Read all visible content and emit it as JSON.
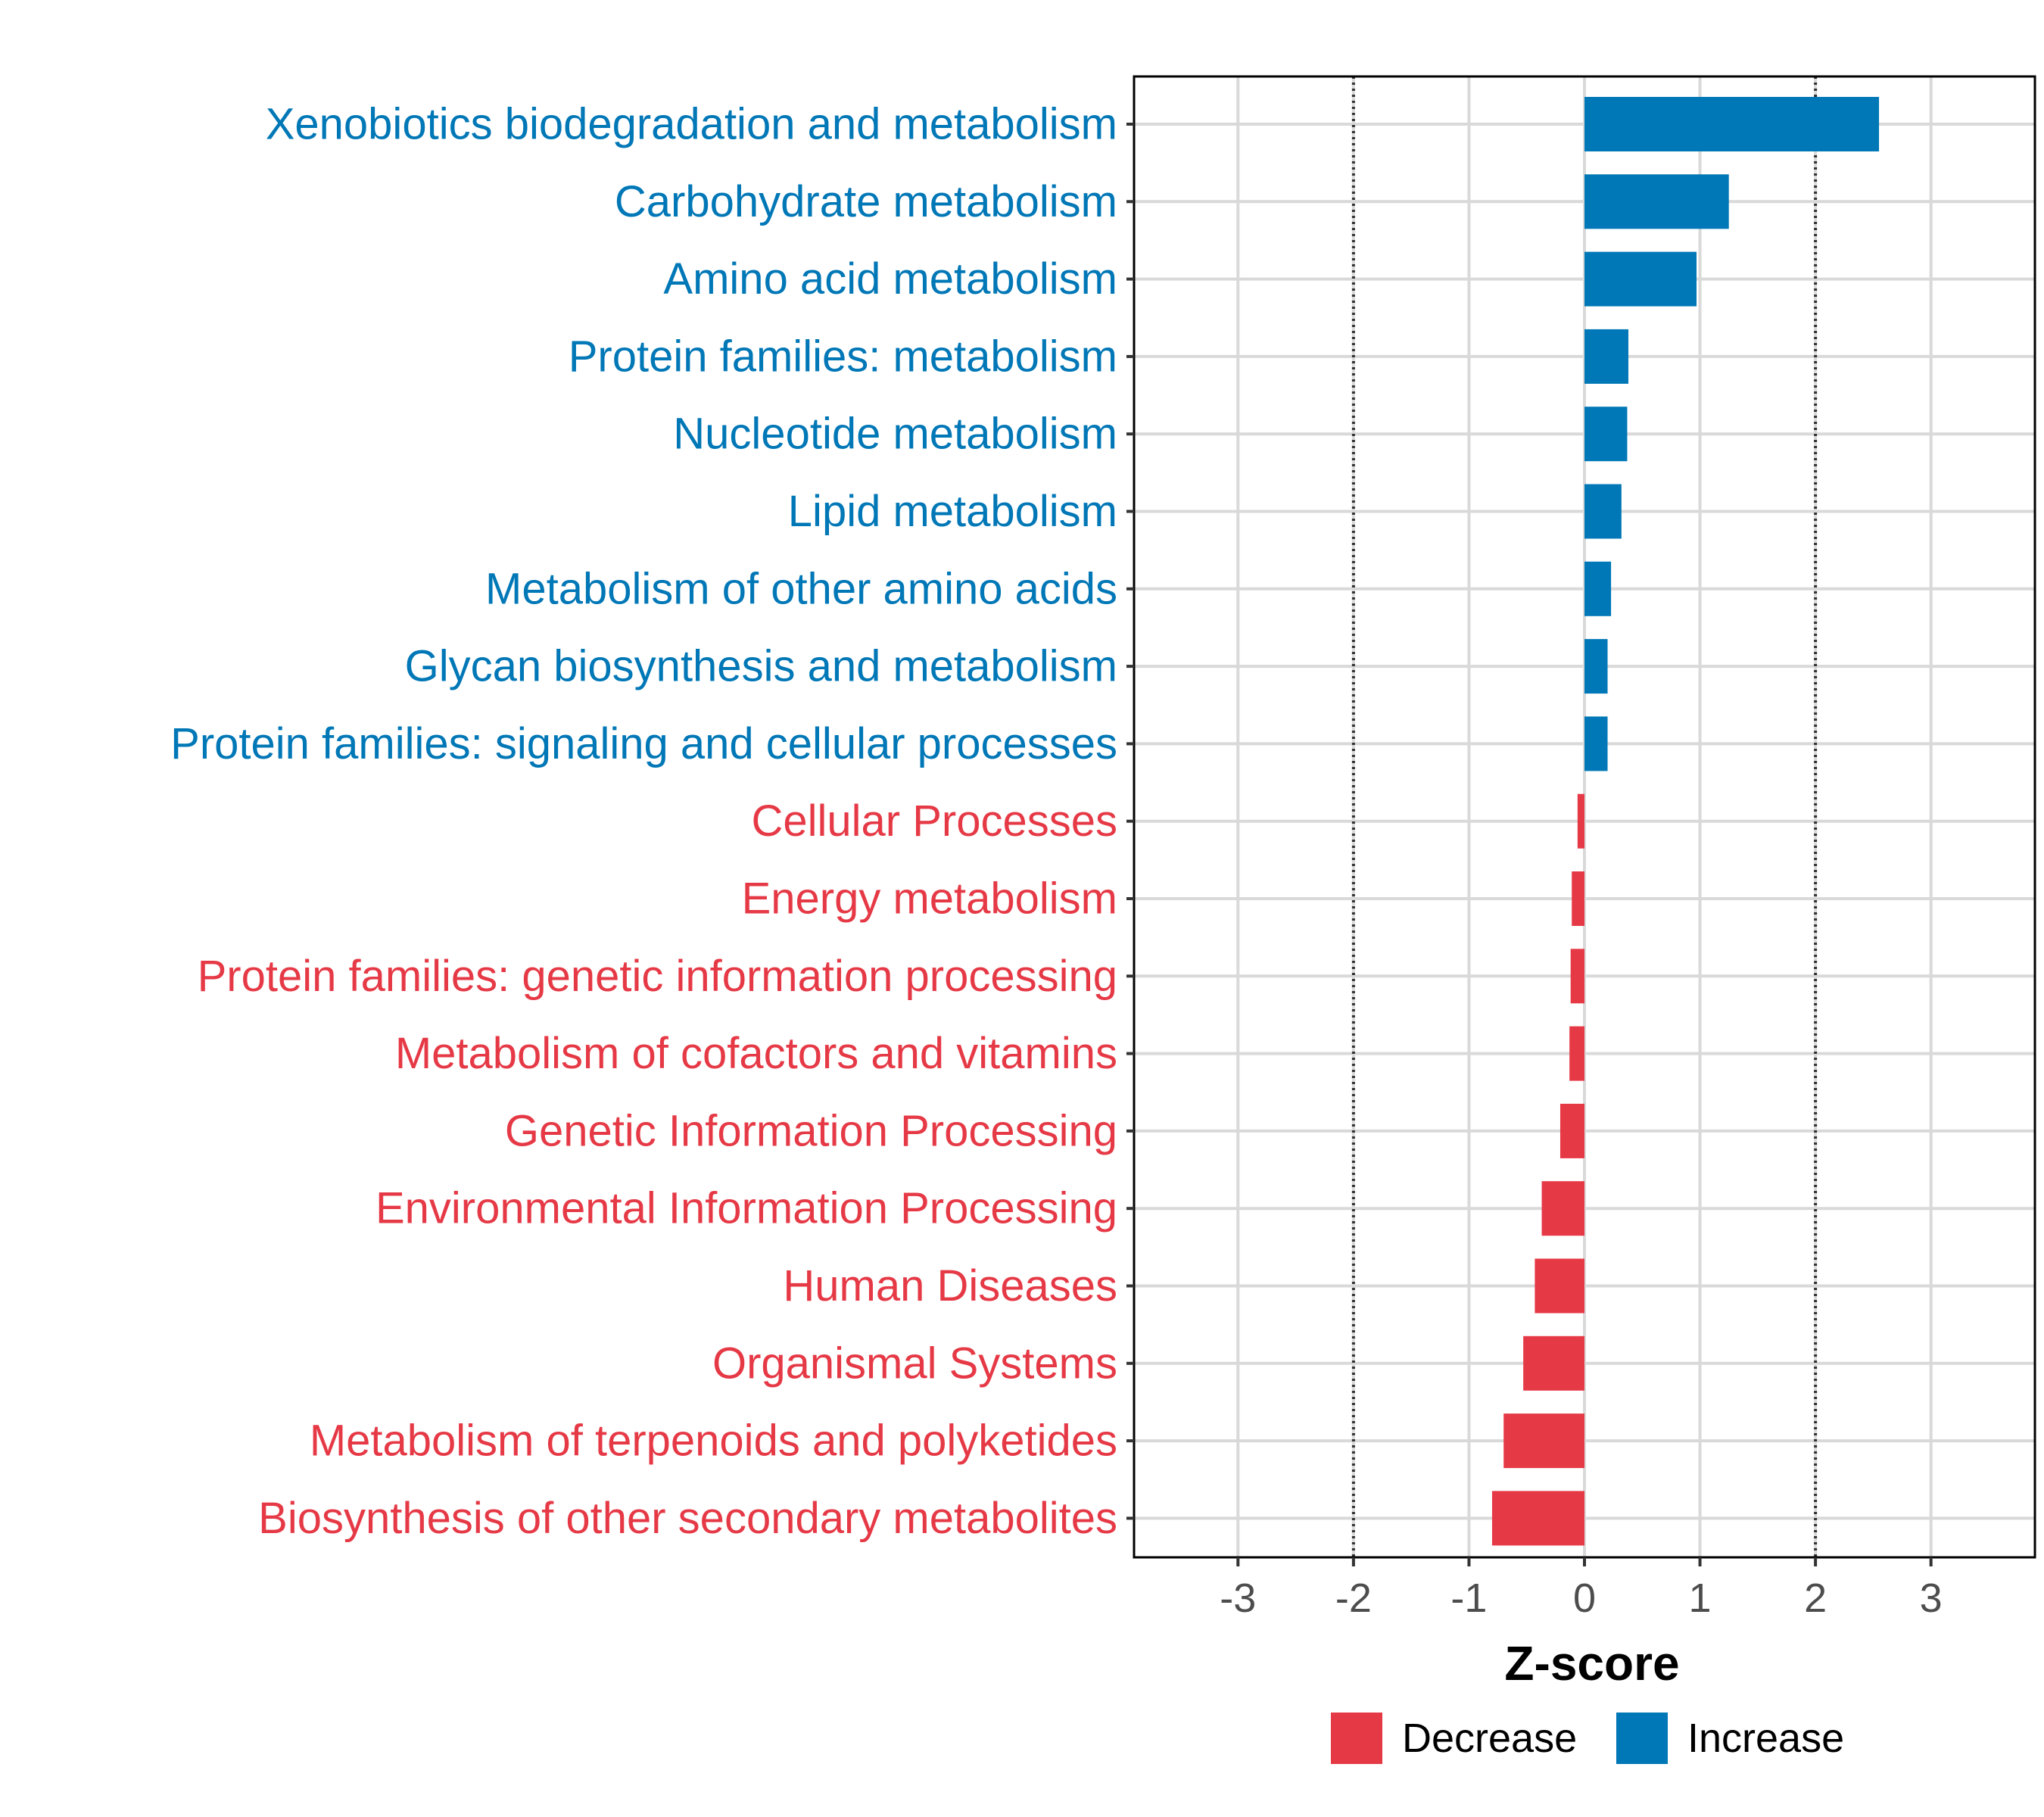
{
  "chart_data": {
    "type": "bar",
    "orientation": "horizontal",
    "xlabel": "Z-score",
    "ylabel": "",
    "xlim": [
      -3.9,
      3.9
    ],
    "x_ticks": [
      -3,
      -2,
      -1,
      0,
      1,
      2,
      3
    ],
    "reference_lines": [
      -2,
      2
    ],
    "grid": true,
    "legend_position": "bottom",
    "legend": [
      {
        "label": "Decrease",
        "color": "#E63946"
      },
      {
        "label": "Increase",
        "color": "#0077B6"
      }
    ],
    "categories": [
      "Xenobiotics biodegradation and metabolism",
      "Carbohydrate metabolism",
      "Amino acid metabolism",
      "Protein families: metabolism",
      "Nucleotide metabolism",
      "Lipid metabolism",
      "Metabolism of other amino acids",
      "Glycan biosynthesis and metabolism",
      "Protein families: signaling and cellular processes",
      "Cellular Processes",
      "Energy metabolism",
      "Protein families: genetic information processing",
      "Metabolism of cofactors and vitamins",
      "Genetic Information Processing",
      "Environmental Information Processing",
      "Human Diseases",
      "Organismal Systems",
      "Metabolism of terpenoids and polyketides",
      "Biosynthesis of other secondary metabolites"
    ],
    "values": [
      2.55,
      1.25,
      0.97,
      0.38,
      0.37,
      0.32,
      0.23,
      0.2,
      0.2,
      -0.06,
      -0.11,
      -0.12,
      -0.13,
      -0.21,
      -0.37,
      -0.43,
      -0.53,
      -0.7,
      -0.8
    ]
  }
}
